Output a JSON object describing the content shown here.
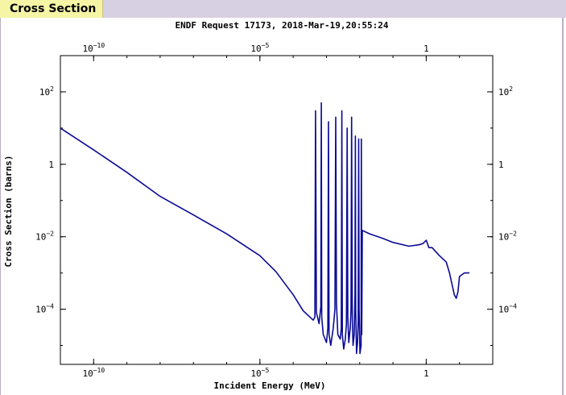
{
  "tab": {
    "label": "Cross Section"
  },
  "chart_data": {
    "type": "line",
    "title": "ENDF Request 17173, 2018-Mar-19,20:55:24",
    "xlabel": "Incident Energy (MeV)",
    "ylabel": "Cross Section (barns)",
    "x_scale": "log",
    "y_scale": "log",
    "xlim": [
      1e-11,
      100.0
    ],
    "ylim": [
      3e-06,
      1000.0
    ],
    "x_ticks": [
      {
        "value": 1e-10,
        "base": "10",
        "exp": "−10"
      },
      {
        "value": 1e-05,
        "base": "10",
        "exp": "−5"
      },
      {
        "value": 1,
        "base": "1",
        "exp": ""
      }
    ],
    "y_ticks": [
      {
        "value": 100,
        "base": "10",
        "exp": "2"
      },
      {
        "value": 1,
        "base": "1",
        "exp": ""
      },
      {
        "value": 0.01,
        "base": "10",
        "exp": "−2"
      },
      {
        "value": 0.0001,
        "base": "10",
        "exp": "−4"
      }
    ],
    "line_color": "#0a0a96",
    "grid": false,
    "series": [
      {
        "x": [
          1e-11,
          1e-10,
          1e-09,
          1e-08,
          1e-07,
          1e-06,
          1e-05,
          3e-05,
          0.0001,
          0.0002,
          0.0004,
          0.00045,
          0.00047,
          0.0005,
          0.0006,
          0.00068,
          0.0007,
          0.00072,
          0.0008,
          0.001,
          0.0011,
          0.00115,
          0.0012,
          0.00135,
          0.0016,
          0.0018,
          0.0019,
          0.002,
          0.0022,
          0.0026,
          0.0028,
          0.0029,
          0.003,
          0.0033,
          0.0037,
          0.004,
          0.0042,
          0.0044,
          0.0047,
          0.0052,
          0.0055,
          0.0057,
          0.006,
          0.0063,
          0.0068,
          0.0072,
          0.0074,
          0.0076,
          0.008,
          0.0086,
          0.009,
          0.0093,
          0.0096,
          0.0102,
          0.011,
          0.0112,
          0.0115,
          0.012,
          0.02,
          0.05,
          0.1,
          0.3,
          0.6,
          0.8,
          1,
          1.2,
          1.5,
          2.5,
          4,
          5,
          7,
          8,
          9,
          10,
          14,
          20
        ],
        "y": [
          10,
          2.5,
          0.6,
          0.13,
          0.04,
          0.012,
          0.003,
          0.0011,
          0.00025,
          9e-05,
          5e-05,
          6e-05,
          30,
          8e-05,
          4e-05,
          0.00012,
          50,
          6e-05,
          2e-05,
          1.2e-05,
          3e-05,
          15,
          2e-05,
          1e-05,
          3e-05,
          0.0001,
          20,
          0.00015,
          2e-05,
          1.5e-05,
          3e-05,
          30,
          2e-05,
          8e-06,
          1.5e-05,
          4e-05,
          10,
          6e-05,
          1.2e-05,
          3e-05,
          0.0001,
          20,
          5e-05,
          1e-05,
          2e-05,
          0.00025,
          6,
          0.0001,
          6e-06,
          1.2e-05,
          5e-05,
          5,
          0.0001,
          6e-06,
          1e-05,
          5,
          2e-05,
          0.015,
          0.012,
          0.009,
          0.007,
          0.0055,
          0.006,
          0.0065,
          0.008,
          0.005,
          0.005,
          0.003,
          0.002,
          0.001,
          0.00025,
          0.0002,
          0.0003,
          0.0008,
          0.001,
          0.001
        ]
      }
    ]
  }
}
